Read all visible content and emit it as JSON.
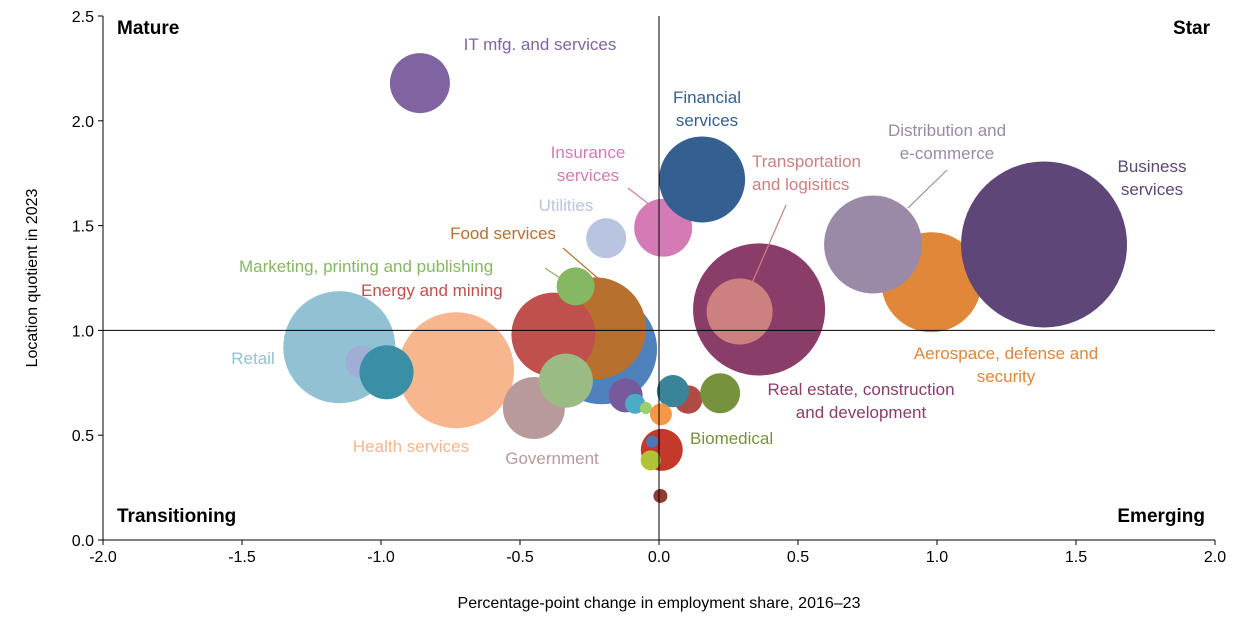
{
  "chart_data": {
    "type": "bubble",
    "xlabel": "Percentage-point change in employment share, 2016–23",
    "ylabel": "Location quotient in 2023",
    "xlim": [
      -2.0,
      2.0
    ],
    "ylim": [
      0.0,
      2.5
    ],
    "xticks": [
      "-2.0",
      "-1.5",
      "-1.0",
      "-0.5",
      "0.0",
      "0.5",
      "1.0",
      "1.5",
      "2.0"
    ],
    "yticks": [
      "0.0",
      "0.5",
      "1.0",
      "1.5",
      "2.0",
      "2.5"
    ],
    "reference_lines": {
      "x": 0.0,
      "y": 1.0
    },
    "grid": false,
    "quadrants": {
      "top_left": "Mature",
      "top_right": "Star",
      "bottom_left": "Transitioning",
      "bottom_right": "Emerging"
    },
    "bubbles": [
      {
        "name": "Retail",
        "x": -1.15,
        "y": 0.92,
        "size": 31.4,
        "color": "#92c1d3"
      },
      {
        "name": "",
        "x": -1.07,
        "y": 0.85,
        "size": 2.6,
        "color": "#9eaed5"
      },
      {
        "name": "Health services",
        "x": -0.73,
        "y": 0.81,
        "size": 33.6,
        "color": "#f7b68e"
      },
      {
        "name": "",
        "x": -0.98,
        "y": 0.8,
        "size": 7.3,
        "color": "#3a8ea5"
      },
      {
        "name": "IT mfg. and services",
        "x": -0.86,
        "y": 2.18,
        "size": 9.0,
        "color": "#8064a2"
      },
      {
        "name": "",
        "x": -0.205,
        "y": 0.91,
        "size": 30.3,
        "color": "#4f81bd"
      },
      {
        "name": "Food services",
        "x": -0.23,
        "y": 1.01,
        "size": 26.0,
        "color": "#b8702e"
      },
      {
        "name": "Energy and mining",
        "x": -0.38,
        "y": 0.98,
        "size": 17.6,
        "color": "#c0504d"
      },
      {
        "name": "Government",
        "x": -0.45,
        "y": 0.63,
        "size": 9.6,
        "color": "#b99a9b"
      },
      {
        "name": "",
        "x": -0.335,
        "y": 0.76,
        "size": 7.3,
        "color": "#9bbb84"
      },
      {
        "name": "Marketing, printing and publishing",
        "x": -0.3,
        "y": 1.21,
        "size": 3.6,
        "color": "#86b762"
      },
      {
        "name": "Utilities",
        "x": -0.19,
        "y": 1.44,
        "size": 4.0,
        "color": "#b9c4e0"
      },
      {
        "name": "",
        "x": -0.12,
        "y": 0.69,
        "size": 2.9,
        "color": "#775a9c"
      },
      {
        "name": "",
        "x": -0.086,
        "y": 0.65,
        "size": 1.0,
        "color": "#4bacc6"
      },
      {
        "name": "",
        "x": -0.047,
        "y": 0.63,
        "size": 0.36,
        "color": "#9bcf6d"
      },
      {
        "name": "Insurance services",
        "x": 0.015,
        "y": 1.49,
        "size": 8.4,
        "color": "#d47ab4"
      },
      {
        "name": "Financial services",
        "x": 0.155,
        "y": 1.72,
        "size": 18.5,
        "color": "#355f91"
      },
      {
        "name": "",
        "x": 0.105,
        "y": 0.67,
        "size": 2.0,
        "color": "#b04a44"
      },
      {
        "name": "",
        "x": 0.05,
        "y": 0.71,
        "size": 2.6,
        "color": "#3a8499"
      },
      {
        "name": "Biomedical",
        "x": 0.22,
        "y": 0.7,
        "size": 4.0,
        "color": "#76923c"
      },
      {
        "name": "",
        "x": 0.007,
        "y": 0.6,
        "size": 1.2,
        "color": "#f79646"
      },
      {
        "name": "",
        "x": 0.01,
        "y": 0.43,
        "size": 4.4,
        "color": "#c4392a"
      },
      {
        "name": "",
        "x": -0.025,
        "y": 0.47,
        "size": 0.36,
        "color": "#4a78b5"
      },
      {
        "name": "",
        "x": -0.03,
        "y": 0.38,
        "size": 1.0,
        "color": "#b2c237"
      },
      {
        "name": "",
        "x": 0.005,
        "y": 0.21,
        "size": 0.49,
        "color": "#943a34"
      },
      {
        "name": "Real estate, construction and development",
        "x": 0.36,
        "y": 1.1,
        "size": 43.6,
        "color": "#8b3d69"
      },
      {
        "name": "Transportation and logisitics",
        "x": 0.29,
        "y": 1.09,
        "size": 10.9,
        "color": "#cc8080"
      },
      {
        "name": "Aerospace, defense and security",
        "x": 0.98,
        "y": 1.23,
        "size": 25.0,
        "color": "#e0873a"
      },
      {
        "name": "Distribution and e-commerce",
        "x": 0.77,
        "y": 1.41,
        "size": 24.0,
        "color": "#9a8aa8"
      },
      {
        "name": "Business services",
        "x": 1.385,
        "y": 1.41,
        "size": 68.9,
        "color": "#5e4778"
      }
    ],
    "labels": [
      {
        "lines": [
          "IT mfg. and services"
        ],
        "color": "#8064a2"
      },
      {
        "lines": [
          "Financial",
          "services"
        ],
        "color": "#355f91"
      },
      {
        "lines": [
          "Insurance",
          "services"
        ],
        "color": "#d47ab4"
      },
      {
        "lines": [
          "Utilities"
        ],
        "color": "#b9c4e0"
      },
      {
        "lines": [
          "Food services"
        ],
        "color": "#b8702e"
      },
      {
        "lines": [
          "Marketing, printing and publishing"
        ],
        "color": "#86b762"
      },
      {
        "lines": [
          "Energy and mining"
        ],
        "color": "#c0504d"
      },
      {
        "lines": [
          "Retail"
        ],
        "color": "#92c1d3"
      },
      {
        "lines": [
          "Health services"
        ],
        "color": "#f7b68e"
      },
      {
        "lines": [
          "Government"
        ],
        "color": "#b99a9b"
      },
      {
        "lines": [
          "Transportation",
          "and logisitics"
        ],
        "color": "#cc8080"
      },
      {
        "lines": [
          "Distribution and",
          "e-commerce"
        ],
        "color": "#9a8aa8"
      },
      {
        "lines": [
          "Business",
          "services"
        ],
        "color": "#5e4778"
      },
      {
        "lines": [
          "Aerospace, defense and",
          "security"
        ],
        "color": "#e0873a"
      },
      {
        "lines": [
          "Real estate, construction",
          "and development"
        ],
        "color": "#8b3d69"
      },
      {
        "lines": [
          "Biomedical"
        ],
        "color": "#76923c"
      }
    ]
  }
}
